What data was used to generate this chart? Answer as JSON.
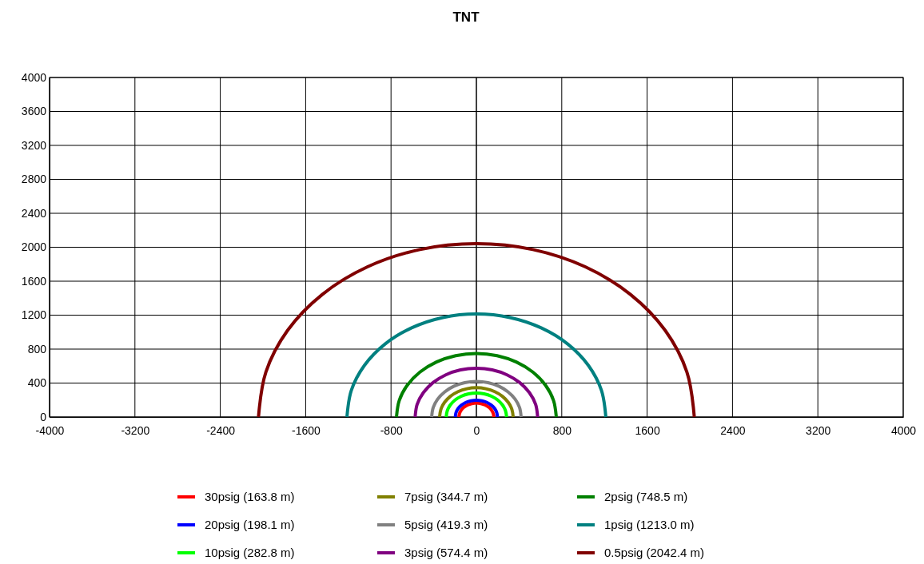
{
  "chart_data": {
    "type": "line",
    "title": "TNT",
    "xlim": [
      -4000,
      4000
    ],
    "xticks": [
      -4000,
      -3200,
      -2400,
      -1600,
      -800,
      0,
      800,
      1600,
      2400,
      3200,
      4000
    ],
    "ylim": [
      0,
      4000
    ],
    "yticks": [
      0,
      400,
      800,
      1200,
      1600,
      2000,
      2400,
      2800,
      3200,
      3600,
      4000
    ],
    "grid": true,
    "legend": "bottom",
    "series": [
      {
        "name": "30psig (163.8 m)",
        "color": "#ff0000",
        "x": [
          164,
          158,
          142,
          116,
          82,
          42,
          0,
          -42,
          -82,
          -116,
          -142,
          -158,
          -164
        ],
        "values": [
          0,
          42,
          82,
          116,
          142,
          158,
          164,
          158,
          142,
          116,
          82,
          42,
          0
        ]
      },
      {
        "name": "20psig (198.1 m)",
        "color": "#0000ff",
        "x": [
          198,
          191,
          172,
          140,
          99,
          51,
          0,
          -51,
          -99,
          -140,
          -172,
          -191,
          -198
        ],
        "values": [
          0,
          51,
          99,
          140,
          172,
          191,
          198,
          191,
          172,
          140,
          99,
          51,
          0
        ]
      },
      {
        "name": "10psig (282.8 m)",
        "color": "#00ff00",
        "x": [
          283,
          273,
          245,
          200,
          141,
          73,
          0,
          -73,
          -141,
          -200,
          -245,
          -273,
          -283
        ],
        "values": [
          0,
          73,
          141,
          200,
          245,
          273,
          283,
          273,
          245,
          200,
          141,
          73,
          0
        ]
      },
      {
        "name": "7psig (344.7 m)",
        "color": "#808000",
        "x": [
          345,
          333,
          299,
          244,
          172,
          89,
          0,
          -89,
          -172,
          -244,
          -299,
          -333,
          -345
        ],
        "values": [
          0,
          89,
          172,
          244,
          299,
          333,
          345,
          333,
          299,
          244,
          172,
          89,
          0
        ]
      },
      {
        "name": "5psig (419.3 m)",
        "color": "#808080",
        "x": [
          419,
          405,
          363,
          296,
          210,
          109,
          0,
          -109,
          -210,
          -296,
          -363,
          -405,
          -419
        ],
        "values": [
          0,
          109,
          210,
          296,
          363,
          405,
          419,
          405,
          363,
          296,
          210,
          109,
          0
        ]
      },
      {
        "name": "3psig (574.4 m)",
        "color": "#800080",
        "x": [
          574,
          555,
          497,
          406,
          287,
          149,
          0,
          -149,
          -287,
          -406,
          -497,
          -555,
          -574
        ],
        "values": [
          0,
          149,
          287,
          406,
          497,
          555,
          574,
          555,
          497,
          406,
          287,
          149,
          0
        ]
      },
      {
        "name": "2psig (748.5 m)",
        "color": "#008000",
        "x": [
          749,
          723,
          648,
          529,
          374,
          194,
          0,
          -194,
          -374,
          -529,
          -648,
          -723,
          -749
        ],
        "values": [
          0,
          194,
          374,
          529,
          648,
          723,
          749,
          723,
          648,
          529,
          374,
          194,
          0
        ]
      },
      {
        "name": "1psig (1213.0 m)",
        "color": "#008080",
        "x": [
          1213,
          1172,
          1050,
          858,
          607,
          314,
          0,
          -314,
          -607,
          -858,
          -1050,
          -1172,
          -1213
        ],
        "values": [
          0,
          314,
          607,
          858,
          1050,
          1172,
          1213,
          1172,
          1050,
          858,
          607,
          314,
          0
        ]
      },
      {
        "name": "0.5psig (2042.4 m)",
        "color": "#800000",
        "x": [
          2042,
          1973,
          1769,
          1444,
          1021,
          529,
          0,
          -529,
          -1021,
          -1444,
          -1769,
          -1973,
          -2042
        ],
        "values": [
          0,
          529,
          1021,
          1444,
          1769,
          1973,
          2042,
          1973,
          1769,
          1444,
          1021,
          529,
          0
        ]
      }
    ]
  }
}
